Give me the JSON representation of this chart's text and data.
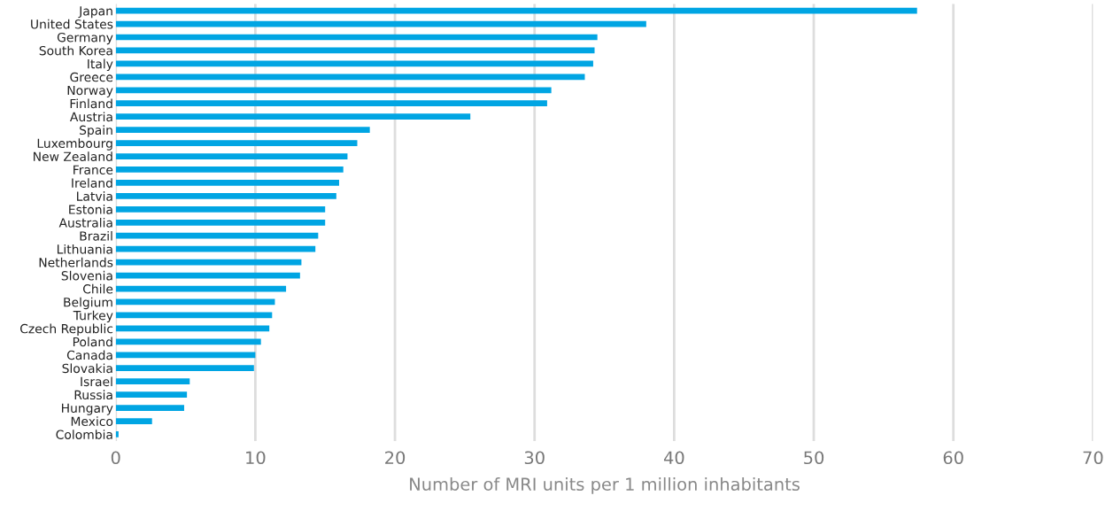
{
  "chart_data": {
    "type": "bar",
    "orientation": "horizontal",
    "xlabel": "Number of MRI units per 1 million inhabitants",
    "categories": [
      "Japan",
      "United States",
      "Germany",
      "South Korea",
      "Italy",
      "Greece",
      "Norway",
      "Finland",
      "Austria",
      "Spain",
      "Luxembourg",
      "New Zealand",
      "France",
      "Ireland",
      "Latvia",
      "Estonia",
      "Australia",
      "Brazil",
      "Lithuania",
      "Netherlands",
      "Slovenia",
      "Chile",
      "Belgium",
      "Turkey",
      "Czech Republic",
      "Poland",
      "Canada",
      "Slovakia",
      "Israel",
      "Russia",
      "Hungary",
      "Mexico",
      "Colombia"
    ],
    "values": [
      57.4,
      38.0,
      34.5,
      34.3,
      34.2,
      33.6,
      31.2,
      30.9,
      25.4,
      18.2,
      17.3,
      16.6,
      16.3,
      16.0,
      15.8,
      15.0,
      15.0,
      14.5,
      14.3,
      13.3,
      13.2,
      12.2,
      11.4,
      11.2,
      11.0,
      10.4,
      10.0,
      9.9,
      5.3,
      5.1,
      4.9,
      2.6,
      0.2
    ],
    "color": "#00a5e3",
    "xlim": [
      0,
      70
    ],
    "xticks": [
      0,
      10,
      20,
      30,
      40,
      50,
      60,
      70
    ],
    "grid": "x",
    "legend": false
  }
}
